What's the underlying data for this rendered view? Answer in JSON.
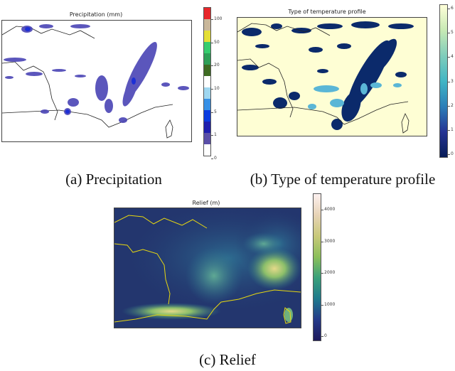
{
  "panels": {
    "a": {
      "title": "Precipitation (mm)",
      "caption": "(a) Precipitation",
      "colorbar_ticks": [
        "100",
        "50",
        "20",
        "10",
        "5",
        "1",
        "0"
      ],
      "colorbar_colors": [
        "#e8262a",
        "#c9b79a",
        "#e4df35",
        "#36cc6e",
        "#2e9f57",
        "#3e6b22",
        "#ffffff",
        "#9fd7f0",
        "#3790e6",
        "#0a3ce0",
        "#1f1fae",
        "#5a4fa8",
        "#ffffff"
      ]
    },
    "b": {
      "title": "Type of temperature profile",
      "caption": "(b) Type of temperature profile",
      "colorbar_ticks": [
        "6",
        "5",
        "4",
        "3",
        "2",
        "1",
        "0"
      ]
    },
    "c": {
      "title": "Relief (m)",
      "caption": "(c) Relief",
      "colorbar_ticks": [
        "4000",
        "3000",
        "2000",
        "1000",
        "0"
      ]
    }
  }
}
